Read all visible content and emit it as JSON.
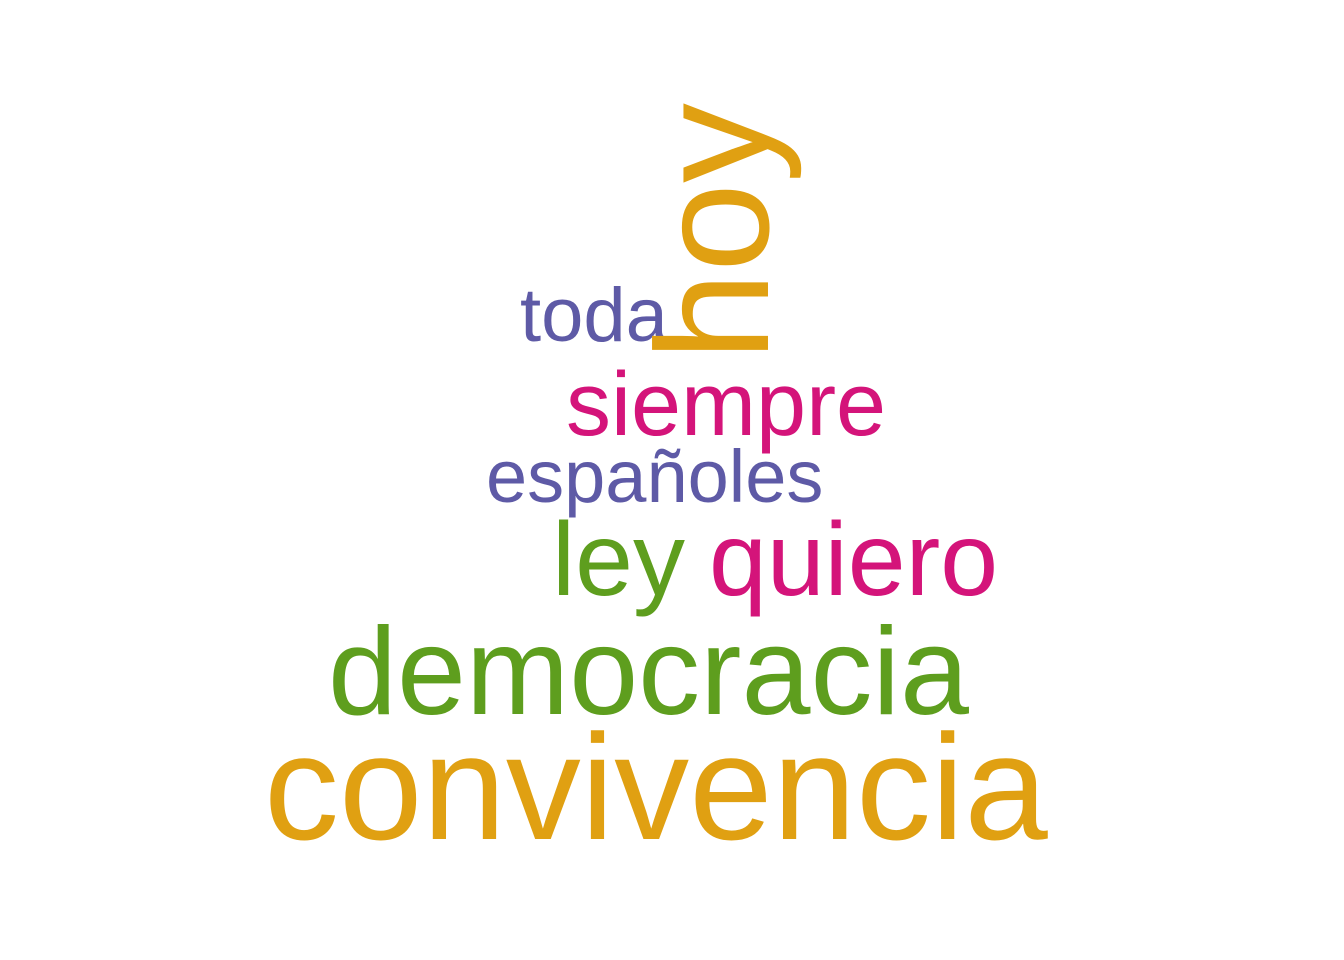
{
  "words": [
    {
      "text": "convivencia",
      "color": "#E0A012"
    },
    {
      "text": "democracia",
      "color": "#5E9E1E"
    },
    {
      "text": "ley",
      "color": "#5E9E1E"
    },
    {
      "text": "quiero",
      "color": "#D4147A"
    },
    {
      "text": "españoles",
      "color": "#5E5AA6"
    },
    {
      "text": "siempre",
      "color": "#D4147A"
    },
    {
      "text": "toda",
      "color": "#5E5AA6"
    },
    {
      "text": "hoy",
      "color": "#E0A012"
    }
  ]
}
